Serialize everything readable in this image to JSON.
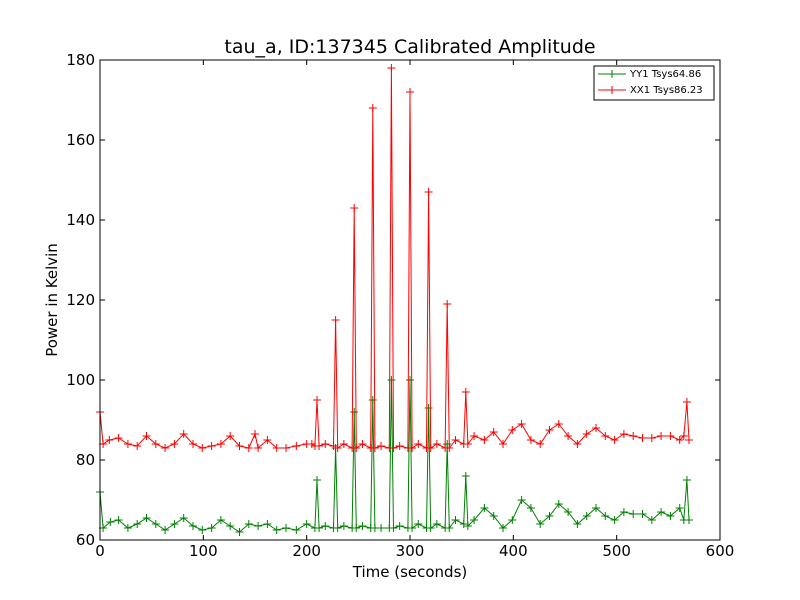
{
  "chart_data": {
    "type": "line",
    "title": "tau_a, ID:137345 Calibrated Amplitude",
    "xlabel": "Time (seconds)",
    "ylabel": "Power in Kelvin",
    "xlim": [
      0,
      600
    ],
    "ylim": [
      60,
      180
    ],
    "xticks": [
      "0",
      "100",
      "200",
      "300",
      "400",
      "500",
      "600"
    ],
    "yticks": [
      "60",
      "80",
      "100",
      "120",
      "140",
      "160",
      "180"
    ],
    "grid": false,
    "legend_position": "top-right",
    "marker": "+",
    "series": [
      {
        "name": "YY1 Tsys64.86",
        "color": "#008000",
        "x": [
          0,
          3,
          10,
          18,
          27,
          36,
          45,
          54,
          63,
          72,
          81,
          90,
          99,
          108,
          117,
          126,
          135,
          144,
          153,
          162,
          171,
          180,
          190,
          200,
          208,
          210,
          212,
          218,
          226,
          228,
          230,
          236,
          244,
          246,
          248,
          254,
          262,
          264,
          266,
          272,
          280,
          282,
          284,
          290,
          298,
          300,
          302,
          308,
          316,
          318,
          320,
          326,
          334,
          336,
          338,
          344,
          352,
          354,
          356,
          362,
          372,
          381,
          390,
          399,
          408,
          417,
          426,
          435,
          444,
          453,
          462,
          471,
          480,
          489,
          498,
          507,
          516,
          525,
          534,
          543,
          552,
          561,
          565,
          568,
          570
        ],
        "values": [
          72,
          63,
          64.5,
          65,
          63,
          64,
          65.5,
          64,
          62.5,
          64,
          65.5,
          63.5,
          62.5,
          63,
          65,
          63.5,
          62,
          64,
          63.5,
          64,
          62.5,
          63,
          62.5,
          64,
          63,
          75,
          63,
          63.5,
          63,
          83,
          63,
          63.5,
          63,
          92,
          63,
          63.5,
          63,
          95,
          63,
          63,
          63,
          100,
          63,
          63.5,
          63,
          100,
          63,
          64,
          63,
          93,
          63,
          64,
          63,
          84,
          63,
          65,
          64,
          76,
          63.5,
          65,
          68,
          66,
          63,
          65,
          70,
          68,
          64,
          66,
          69,
          67,
          64,
          66,
          68,
          66,
          65,
          67,
          66.5,
          66.5,
          65,
          67,
          66,
          68,
          65,
          75,
          65
        ]
      },
      {
        "name": "XX1 Tsys86.23",
        "color": "#ff0000",
        "x": [
          0,
          3,
          9,
          18,
          27,
          36,
          45,
          54,
          63,
          72,
          81,
          90,
          99,
          108,
          117,
          126,
          135,
          144,
          150,
          153,
          162,
          171,
          180,
          190,
          200,
          205,
          208,
          210,
          212,
          218,
          226,
          228,
          230,
          236,
          244,
          246,
          248,
          254,
          262,
          264,
          266,
          272,
          280,
          282,
          284,
          290,
          298,
          300,
          302,
          308,
          316,
          318,
          320,
          326,
          334,
          336,
          338,
          344,
          352,
          354,
          356,
          362,
          372,
          381,
          390,
          399,
          408,
          417,
          426,
          435,
          444,
          453,
          462,
          471,
          480,
          489,
          498,
          507,
          516,
          525,
          534,
          543,
          552,
          561,
          565,
          568,
          570
        ],
        "values": [
          92,
          84,
          85,
          85.5,
          84,
          83.5,
          86,
          84,
          83,
          84,
          86.5,
          84,
          83,
          83.5,
          84,
          86,
          83.5,
          83,
          86.5,
          83,
          85,
          83,
          83,
          83.5,
          84,
          84,
          83.5,
          95,
          83.5,
          84,
          83.5,
          115,
          83,
          84,
          83,
          143,
          83,
          84,
          83,
          168,
          83,
          83.5,
          83,
          178,
          83,
          83.5,
          83,
          172,
          83,
          84,
          83,
          147,
          83,
          84,
          83,
          119,
          83,
          85,
          84,
          97,
          84,
          86,
          85,
          87,
          84,
          87.5,
          89,
          85,
          84,
          87.5,
          89,
          86,
          84,
          86.5,
          88,
          86,
          85,
          86.5,
          86,
          85.5,
          85.5,
          86,
          86,
          85,
          86,
          94.5,
          85
        ]
      }
    ]
  }
}
